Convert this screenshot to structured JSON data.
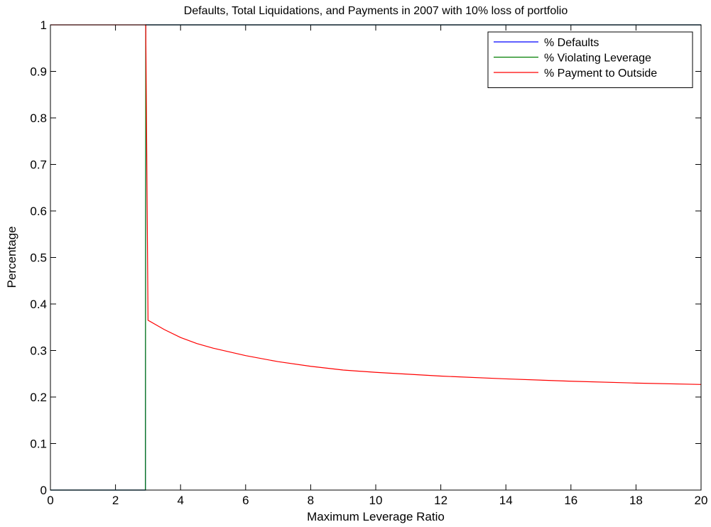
{
  "chart_data": {
    "type": "line",
    "title": "Defaults, Total Liquidations, and Payments in 2007 with 10% loss of portfolio",
    "xlabel": "Maximum Leverage Ratio",
    "ylabel": "Percentage",
    "xlim": [
      0,
      20
    ],
    "ylim": [
      0,
      1
    ],
    "xticks": [
      0,
      2,
      4,
      6,
      8,
      10,
      12,
      14,
      16,
      18,
      20
    ],
    "xtick_labels": [
      "0",
      "2",
      "4",
      "6",
      "8",
      "10",
      "12",
      "14",
      "16",
      "18",
      "20"
    ],
    "yticks": [
      0,
      0.1,
      0.2,
      0.3,
      0.4,
      0.5,
      0.6,
      0.7,
      0.8,
      0.9,
      1
    ],
    "ytick_labels": [
      "0",
      "0.1",
      "0.2",
      "0.3",
      "0.4",
      "0.5",
      "0.6",
      "0.7",
      "0.8",
      "0.9",
      "1"
    ],
    "grid": false,
    "legend_position": "top-right",
    "series": [
      {
        "name": "% Defaults",
        "color": "#0000ff",
        "x": [
          0,
          2.92,
          2.93,
          20
        ],
        "y": [
          0,
          0,
          1,
          1
        ]
      },
      {
        "name": "% Violating Leverage",
        "color": "#007f00",
        "x": [
          0,
          2.92,
          2.93,
          20
        ],
        "y": [
          0,
          0,
          1,
          1
        ]
      },
      {
        "name": "% Payment to Outside",
        "color": "#ff0000",
        "x": [
          0,
          2.92,
          2.93,
          3.0,
          3.5,
          4,
          4.5,
          5,
          6,
          7,
          8,
          9,
          10,
          12,
          14,
          16,
          18,
          20
        ],
        "y": [
          1,
          1,
          1,
          0.365,
          0.345,
          0.328,
          0.315,
          0.305,
          0.289,
          0.276,
          0.266,
          0.258,
          0.253,
          0.245,
          0.239,
          0.234,
          0.23,
          0.227
        ]
      }
    ]
  }
}
